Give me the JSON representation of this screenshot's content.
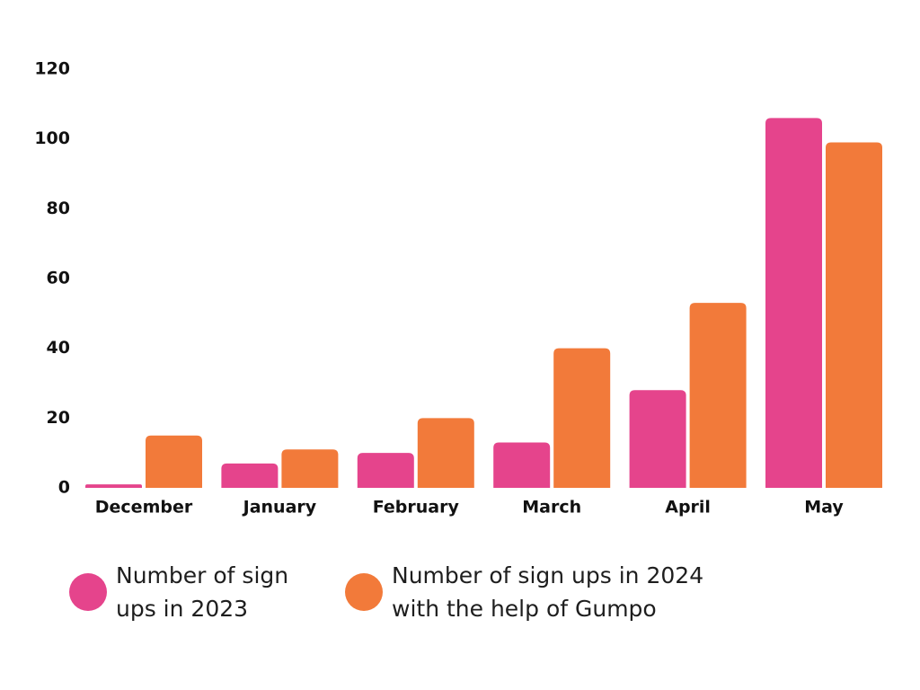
{
  "colors": {
    "series_2023": "#e5448c",
    "series_2024": "#f27a3a",
    "text": "#111111"
  },
  "chart_data": {
    "type": "bar",
    "categories": [
      "December",
      "January",
      "February",
      "March",
      "April",
      "May"
    ],
    "series": [
      {
        "name": "Number of sign ups in 2023",
        "values": [
          1,
          7,
          10,
          13,
          28,
          106
        ]
      },
      {
        "name": "Number of sign ups in 2024 with the help of Gumpo",
        "values": [
          15,
          11,
          20,
          40,
          53,
          99
        ]
      }
    ],
    "y_ticks": [
      "0",
      "20",
      "40",
      "60",
      "80",
      "100",
      "120"
    ],
    "ylim": [
      0,
      120
    ],
    "title": "",
    "xlabel": "",
    "ylabel": "",
    "grid": false,
    "legend_position": "bottom-left"
  },
  "legend": {
    "items": [
      {
        "label_line1": "Number of sign",
        "label_line2": "ups in 2023",
        "color": "#e5448c",
        "icon": "circle-swatch"
      },
      {
        "label_line1": "Number of sign ups in 2024",
        "label_line2": "with the help of Gumpo",
        "color": "#f27a3a",
        "icon": "circle-swatch"
      }
    ]
  }
}
